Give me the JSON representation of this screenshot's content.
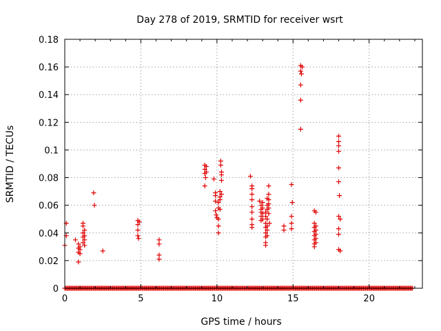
{
  "chart_data": {
    "type": "scatter",
    "title": "Day 278 of 2019, SRMTID for receiver wsrt",
    "xlabel": "GPS time / hours",
    "ylabel": "SRMTID / TECUs",
    "xlim": [
      0,
      23.5
    ],
    "ylim": [
      0,
      0.18
    ],
    "xticks": [
      0,
      5,
      10,
      15,
      20
    ],
    "xtick_labels": [
      "0",
      "5",
      "10",
      "15",
      "20"
    ],
    "yticks": [
      0,
      0.02,
      0.04,
      0.06,
      0.08,
      0.1,
      0.12,
      0.14,
      0.16,
      0.18
    ],
    "ytick_labels": [
      "0",
      "0.02",
      "0.04",
      "0.06",
      "0.08",
      "0.1",
      "0.12",
      "0.14",
      "0.16",
      "0.18"
    ],
    "grid": true,
    "marker": "+",
    "color": "#e00000",
    "zero_baseline": {
      "x_start": 0.0,
      "x_end": 22.9,
      "step": 0.067,
      "y": 0
    },
    "points": [
      [
        0.0,
        0.031
      ],
      [
        0.1,
        0.047
      ],
      [
        0.1,
        0.038
      ],
      [
        0.7,
        0.035
      ],
      [
        0.9,
        0.032
      ],
      [
        0.9,
        0.029
      ],
      [
        0.9,
        0.026
      ],
      [
        0.9,
        0.019
      ],
      [
        1.0,
        0.025
      ],
      [
        1.0,
        0.028
      ],
      [
        1.0,
        0.03
      ],
      [
        1.2,
        0.047
      ],
      [
        1.2,
        0.045
      ],
      [
        1.2,
        0.04
      ],
      [
        1.2,
        0.037
      ],
      [
        1.2,
        0.033
      ],
      [
        1.3,
        0.038
      ],
      [
        1.3,
        0.035
      ],
      [
        1.3,
        0.031
      ],
      [
        1.3,
        0.042
      ],
      [
        1.9,
        0.069
      ],
      [
        1.95,
        0.06
      ],
      [
        2.5,
        0.027
      ],
      [
        4.8,
        0.049
      ],
      [
        4.8,
        0.046
      ],
      [
        4.8,
        0.042
      ],
      [
        4.8,
        0.038
      ],
      [
        4.85,
        0.036
      ],
      [
        4.9,
        0.048
      ],
      [
        6.2,
        0.035
      ],
      [
        6.2,
        0.032
      ],
      [
        6.2,
        0.024
      ],
      [
        6.2,
        0.021
      ],
      [
        9.2,
        0.089
      ],
      [
        9.2,
        0.086
      ],
      [
        9.2,
        0.083
      ],
      [
        9.25,
        0.08
      ],
      [
        9.2,
        0.074
      ],
      [
        9.3,
        0.088
      ],
      [
        9.3,
        0.084
      ],
      [
        9.8,
        0.079
      ],
      [
        9.9,
        0.069
      ],
      [
        9.9,
        0.067
      ],
      [
        9.9,
        0.063
      ],
      [
        9.9,
        0.056
      ],
      [
        9.95,
        0.053
      ],
      [
        10.0,
        0.051
      ],
      [
        10.1,
        0.062
      ],
      [
        10.1,
        0.058
      ],
      [
        10.1,
        0.05
      ],
      [
        10.1,
        0.045
      ],
      [
        10.1,
        0.04
      ],
      [
        10.2,
        0.07
      ],
      [
        10.2,
        0.066
      ],
      [
        10.2,
        0.064
      ],
      [
        10.25,
        0.092
      ],
      [
        10.25,
        0.089
      ],
      [
        10.3,
        0.084
      ],
      [
        10.3,
        0.082
      ],
      [
        10.3,
        0.078
      ],
      [
        10.3,
        0.068
      ],
      [
        10.2,
        0.057
      ],
      [
        12.2,
        0.081
      ],
      [
        12.3,
        0.074
      ],
      [
        12.3,
        0.072
      ],
      [
        12.3,
        0.068
      ],
      [
        12.3,
        0.064
      ],
      [
        12.3,
        0.059
      ],
      [
        12.3,
        0.055
      ],
      [
        12.3,
        0.05
      ],
      [
        12.3,
        0.046
      ],
      [
        12.3,
        0.044
      ],
      [
        12.8,
        0.063
      ],
      [
        12.9,
        0.06
      ],
      [
        12.9,
        0.057
      ],
      [
        12.9,
        0.055
      ],
      [
        12.9,
        0.052
      ],
      [
        12.9,
        0.049
      ],
      [
        13.0,
        0.062
      ],
      [
        13.0,
        0.058
      ],
      [
        13.0,
        0.054
      ],
      [
        13.0,
        0.05
      ],
      [
        13.2,
        0.055
      ],
      [
        13.2,
        0.052
      ],
      [
        13.2,
        0.047
      ],
      [
        13.2,
        0.044
      ],
      [
        13.2,
        0.04
      ],
      [
        13.2,
        0.037
      ],
      [
        13.2,
        0.033
      ],
      [
        13.2,
        0.031
      ],
      [
        13.3,
        0.065
      ],
      [
        13.3,
        0.06
      ],
      [
        13.3,
        0.057
      ],
      [
        13.3,
        0.05
      ],
      [
        13.3,
        0.045
      ],
      [
        13.3,
        0.042
      ],
      [
        13.3,
        0.038
      ],
      [
        13.4,
        0.074
      ],
      [
        13.4,
        0.068
      ],
      [
        13.4,
        0.064
      ],
      [
        13.4,
        0.061
      ],
      [
        13.4,
        0.058
      ],
      [
        13.4,
        0.054
      ],
      [
        13.45,
        0.047
      ],
      [
        14.4,
        0.045
      ],
      [
        14.4,
        0.042
      ],
      [
        14.9,
        0.075
      ],
      [
        14.95,
        0.062
      ],
      [
        14.9,
        0.052
      ],
      [
        14.9,
        0.047
      ],
      [
        14.9,
        0.043
      ],
      [
        15.5,
        0.161
      ],
      [
        15.6,
        0.16
      ],
      [
        15.5,
        0.157
      ],
      [
        15.55,
        0.155
      ],
      [
        15.5,
        0.147
      ],
      [
        15.5,
        0.136
      ],
      [
        15.5,
        0.115
      ],
      [
        16.4,
        0.056
      ],
      [
        16.5,
        0.055
      ],
      [
        16.4,
        0.047
      ],
      [
        16.4,
        0.044
      ],
      [
        16.4,
        0.041
      ],
      [
        16.4,
        0.038
      ],
      [
        16.4,
        0.035
      ],
      [
        16.4,
        0.032
      ],
      [
        16.4,
        0.03
      ],
      [
        16.5,
        0.045
      ],
      [
        16.5,
        0.042
      ],
      [
        16.5,
        0.039
      ],
      [
        16.5,
        0.036
      ],
      [
        16.5,
        0.033
      ],
      [
        18.0,
        0.11
      ],
      [
        18.0,
        0.106
      ],
      [
        18.0,
        0.103
      ],
      [
        18.0,
        0.099
      ],
      [
        18.0,
        0.087
      ],
      [
        18.0,
        0.077
      ],
      [
        18.05,
        0.067
      ],
      [
        18.0,
        0.052
      ],
      [
        18.1,
        0.05
      ],
      [
        18.0,
        0.043
      ],
      [
        18.0,
        0.039
      ],
      [
        18.0,
        0.028
      ],
      [
        18.1,
        0.027
      ]
    ]
  }
}
